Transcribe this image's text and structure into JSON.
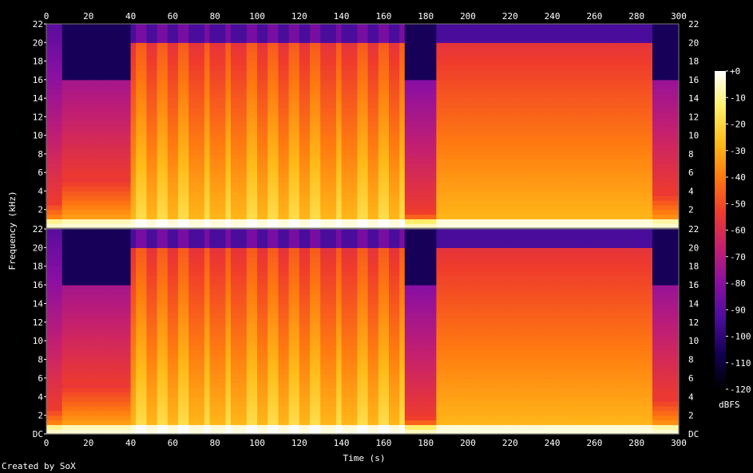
{
  "chart_data": {
    "type": "heatmap",
    "title": "",
    "xlabel": "Time (s)",
    "ylabel": "Frequency (kHz)",
    "xlim": [
      0,
      300
    ],
    "ylim": [
      0,
      22
    ],
    "x_ticks": [
      "0",
      "20",
      "40",
      "60",
      "80",
      "100",
      "120",
      "140",
      "160",
      "180",
      "200",
      "220",
      "240",
      "260",
      "280",
      "300"
    ],
    "y_ticks_top": [
      "2",
      "4",
      "6",
      "8",
      "10",
      "12",
      "14",
      "16",
      "18",
      "20",
      "22"
    ],
    "y_ticks_bottom": [
      "DC",
      "2",
      "4",
      "6",
      "8",
      "10",
      "12",
      "14",
      "16",
      "18",
      "20",
      "22"
    ],
    "channels": 2,
    "colorbar": {
      "label": "dBFS",
      "ticks": [
        "+0",
        "-10",
        "-20",
        "-30",
        "-40",
        "-50",
        "-60",
        "-70",
        "-80",
        "-90",
        "-100",
        "-110",
        "-120"
      ],
      "range": [
        -120,
        0
      ],
      "colors": [
        "#000000",
        "#120052",
        "#4b0c9c",
        "#8a0fa3",
        "#c41f70",
        "#ef3b2c",
        "#ff7a10",
        "#ffbd19",
        "#fff06a",
        "#ffffff"
      ]
    },
    "segments": [
      {
        "t": [
          0,
          8
        ],
        "energy": "low partials",
        "bright_top_khz": 3
      },
      {
        "t": [
          8,
          40
        ],
        "energy": "quiet intro",
        "bright_top_khz": 5.5
      },
      {
        "t": [
          40,
          170
        ],
        "energy": "loud section with bright pulses",
        "bright_top_khz": 20
      },
      {
        "t": [
          170,
          185
        ],
        "energy": "fade / gap",
        "bright_top_khz": 2
      },
      {
        "t": [
          185,
          288
        ],
        "energy": "loud section",
        "bright_top_khz": 20
      },
      {
        "t": [
          288,
          300
        ],
        "energy": "fade out",
        "bright_top_khz": 4
      }
    ]
  },
  "footer": {
    "credit": "Created by SoX"
  }
}
